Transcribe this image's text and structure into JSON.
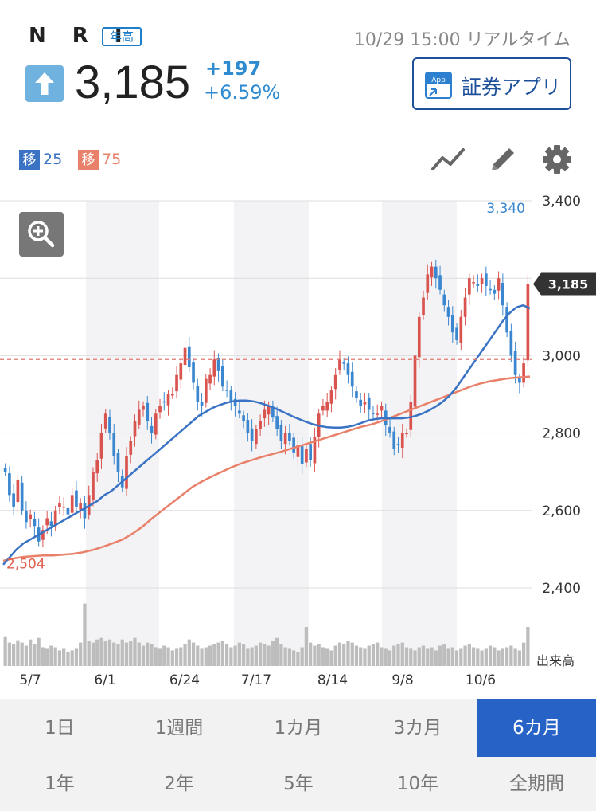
{
  "header": {
    "ticker": "N R I",
    "badge": "年高",
    "timestamp": "10/29 15:00 リアルタイム",
    "price": "3,185",
    "change": "+197",
    "change_pct": "+6.59%",
    "app_button_label": "証券アプリ",
    "app_icon_text": "App",
    "direction_icon": "arrow-up-icon"
  },
  "indicators": {
    "ma1_tag": "移",
    "ma1_value": "25",
    "ma1_color": "#3a72c4",
    "ma2_tag": "移",
    "ma2_value": "75",
    "ma2_color": "#e9806a"
  },
  "toolbar": {
    "icons": [
      "line-chart-icon",
      "pencil-icon",
      "gear-icon"
    ],
    "zoom_icon": "zoom-in-icon"
  },
  "colors": {
    "up": "#d9534f",
    "down": "#3a87d0",
    "ma25": "#3a72c4",
    "ma75": "#e9806a",
    "volume": "#bdbdbd",
    "price_tag_bg": "#333333"
  },
  "chart_data": {
    "type": "candlestick",
    "ylim": [
      2400,
      3400
    ],
    "y_ticks": [
      "3,400",
      "3,000",
      "2,800",
      "2,600",
      "2,400"
    ],
    "x_ticks": [
      "5/7",
      "6/1",
      "6/24",
      "7/17",
      "8/14",
      "9/8",
      "10/6"
    ],
    "volume_label": "出来高",
    "high_label": "3,340",
    "low_label": "2,504",
    "current_price_label": "3,185",
    "reference_line": 2990,
    "close": [
      2700,
      2640,
      2610,
      2680,
      2600,
      2570,
      2590,
      2560,
      2520,
      2550,
      2580,
      2560,
      2600,
      2620,
      2610,
      2590,
      2640,
      2610,
      2620,
      2580,
      2640,
      2700,
      2730,
      2800,
      2850,
      2800,
      2740,
      2700,
      2660,
      2740,
      2780,
      2830,
      2860,
      2870,
      2830,
      2800,
      2850,
      2870,
      2880,
      2900,
      2900,
      2950,
      2980,
      3020,
      2970,
      2930,
      2880,
      2870,
      2940,
      2950,
      2990,
      2960,
      2920,
      2910,
      2880,
      2870,
      2850,
      2830,
      2800,
      2780,
      2810,
      2830,
      2860,
      2870,
      2840,
      2810,
      2780,
      2800,
      2780,
      2750,
      2770,
      2720,
      2760,
      2730,
      2790,
      2850,
      2870,
      2880,
      2910,
      2950,
      2990,
      2980,
      2950,
      2920,
      2890,
      2870,
      2880,
      2860,
      2850,
      2850,
      2870,
      2820,
      2800,
      2760,
      2770,
      2800,
      2800,
      2880,
      3000,
      3100,
      3150,
      3210,
      3230,
      3200,
      3170,
      3130,
      3100,
      3060,
      3040,
      3100,
      3150,
      3200,
      3190,
      3180,
      3200,
      3180,
      3170,
      3160,
      3200,
      3130,
      3060,
      3000,
      2950,
      2930,
      2980,
      3185
    ],
    "ma25": [
      2460,
      2480,
      2500,
      2515,
      2525,
      2535,
      2545,
      2555,
      2565,
      2575,
      2585,
      2595,
      2605,
      2615,
      2625,
      2640,
      2650,
      2665,
      2680,
      2695,
      2710,
      2725,
      2740,
      2755,
      2770,
      2785,
      2800,
      2815,
      2830,
      2845,
      2855,
      2865,
      2872,
      2878,
      2882,
      2884,
      2884,
      2882,
      2878,
      2872,
      2866,
      2858,
      2850,
      2842,
      2835,
      2828,
      2822,
      2818,
      2815,
      2814,
      2814,
      2816,
      2820,
      2826,
      2832,
      2836,
      2838,
      2838,
      2838,
      2838,
      2840,
      2844,
      2850,
      2858,
      2868,
      2880,
      2895,
      2915,
      2940,
      2965,
      2990,
      3015,
      3040,
      3065,
      3090,
      3110,
      3125,
      3130,
      3122
    ],
    "ma75": [
      2470,
      2476,
      2480,
      2482,
      2484,
      2484,
      2486,
      2488,
      2492,
      2498,
      2506,
      2515,
      2525,
      2540,
      2558,
      2580,
      2600,
      2620,
      2640,
      2660,
      2675,
      2688,
      2700,
      2712,
      2722,
      2730,
      2738,
      2745,
      2752,
      2760,
      2768,
      2776,
      2784,
      2792,
      2800,
      2808,
      2816,
      2822,
      2830,
      2840,
      2850,
      2860,
      2870,
      2880,
      2890,
      2900,
      2910,
      2920,
      2928,
      2934,
      2938,
      2942,
      2944,
      2946
    ],
    "volume": [
      38,
      30,
      28,
      33,
      30,
      26,
      34,
      28,
      36,
      24,
      22,
      26,
      24,
      20,
      22,
      18,
      20,
      22,
      30,
      80,
      32,
      30,
      34,
      36,
      32,
      34,
      30,
      28,
      34,
      30,
      32,
      36,
      30,
      26,
      30,
      28,
      24,
      22,
      26,
      24,
      20,
      22,
      24,
      28,
      34,
      30,
      26,
      22,
      24,
      26,
      28,
      30,
      32,
      28,
      24,
      26,
      30,
      28,
      22,
      24,
      26,
      30,
      28,
      26,
      32,
      36,
      28,
      24,
      22,
      20,
      18,
      24,
      50,
      30,
      26,
      28,
      24,
      22,
      20,
      26,
      30,
      28,
      32,
      30,
      26,
      24,
      22,
      26,
      28,
      30,
      24,
      22,
      20,
      26,
      28,
      30,
      24,
      22,
      20,
      24,
      26,
      22,
      24,
      20,
      26,
      28,
      22,
      24,
      20,
      22,
      26,
      28,
      24,
      22,
      20,
      22,
      26,
      24,
      20,
      22,
      24,
      26,
      22,
      20,
      30,
      50
    ]
  },
  "tabs": {
    "row1": [
      "1日",
      "1週間",
      "1カ月",
      "3カ月",
      "6カ月"
    ],
    "row2": [
      "1年",
      "2年",
      "5年",
      "10年",
      "全期間"
    ],
    "active": "6カ月"
  }
}
